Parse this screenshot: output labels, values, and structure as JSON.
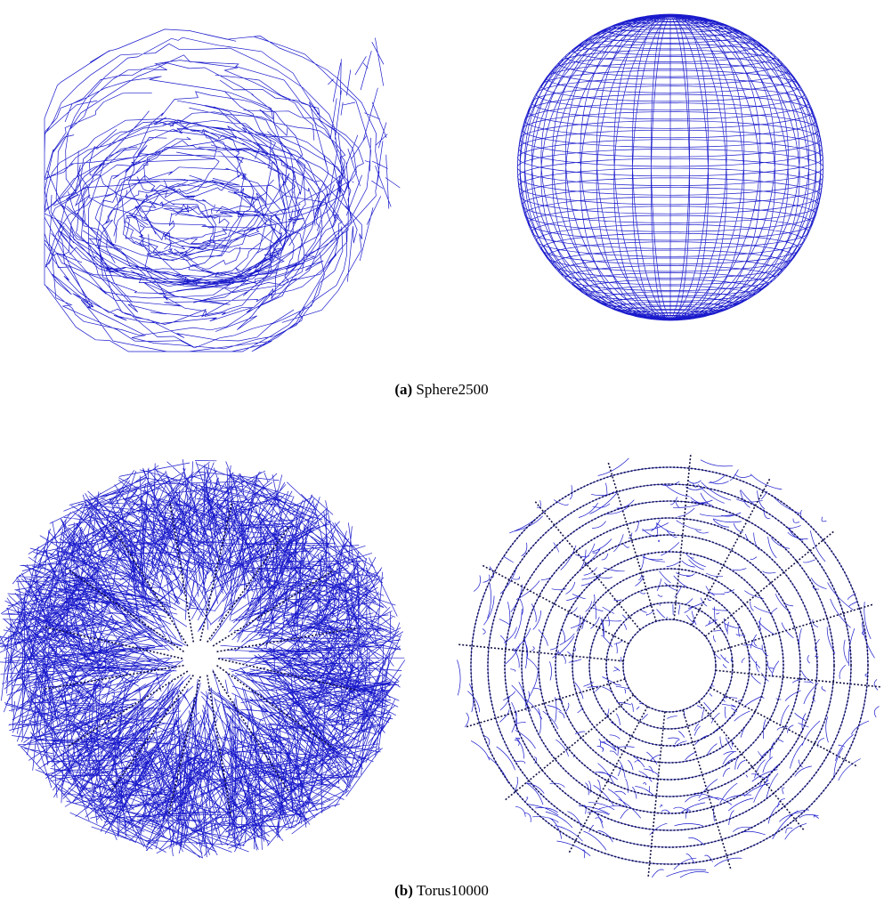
{
  "figures": [
    {
      "label": "(a)",
      "caption": "Sphere2500"
    },
    {
      "label": "(b)",
      "caption": "Torus10000"
    }
  ]
}
